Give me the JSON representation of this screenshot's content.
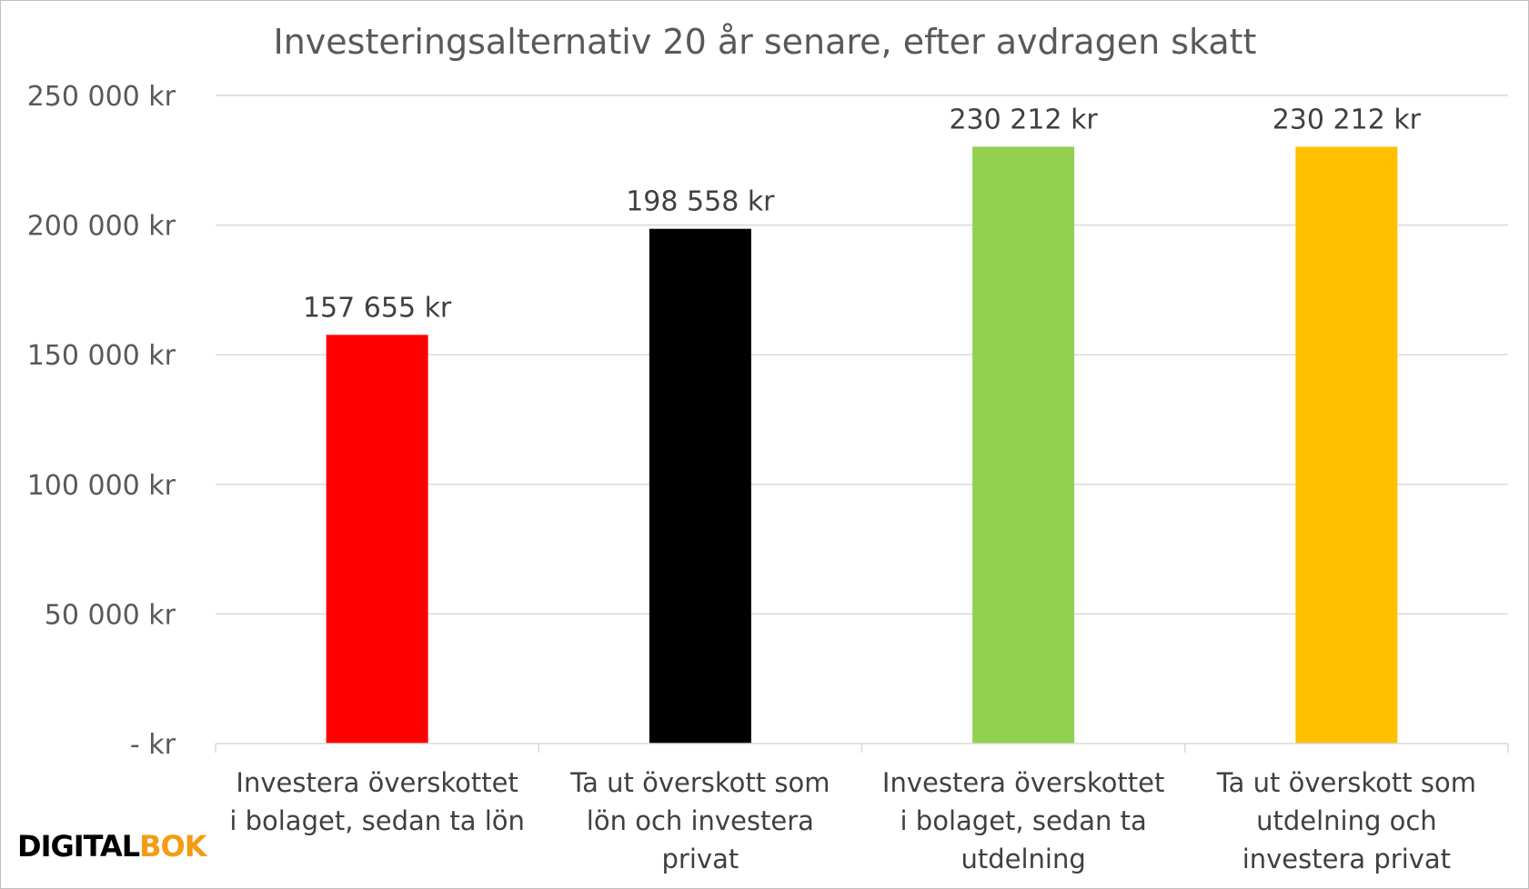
{
  "chart_data": {
    "type": "bar",
    "title": "Investeringsalternativ 20 år senare, efter avdragen skatt",
    "xlabel": "",
    "ylabel": "",
    "ylim": [
      0,
      250000
    ],
    "grid": true,
    "legend": "none",
    "yticks": [
      {
        "value": 0,
        "label": "-   kr"
      },
      {
        "value": 50000,
        "label": "50 000 kr"
      },
      {
        "value": 100000,
        "label": "100 000 kr"
      },
      {
        "value": 150000,
        "label": "150 000 kr"
      },
      {
        "value": 200000,
        "label": "200 000 kr"
      },
      {
        "value": 250000,
        "label": "250 000 kr"
      }
    ],
    "categories": [
      [
        "Investera överskottet",
        "i bolaget, sedan ta lön"
      ],
      [
        "Ta ut överskott som",
        "lön och investera",
        "privat"
      ],
      [
        "Investera överskottet",
        "i bolaget, sedan ta",
        "utdelning"
      ],
      [
        "Ta ut överskott som",
        "utdelning och",
        "investera privat"
      ]
    ],
    "values": [
      157655,
      198558,
      230212,
      230212
    ],
    "data_labels": [
      "157 655 kr",
      "198 558 kr",
      "230 212 kr",
      "230 212 kr"
    ],
    "colors": [
      "#ff0000",
      "#000000",
      "#92d050",
      "#ffc000"
    ]
  },
  "logo": {
    "part1": "DIGITAL",
    "part2": "BOK"
  }
}
